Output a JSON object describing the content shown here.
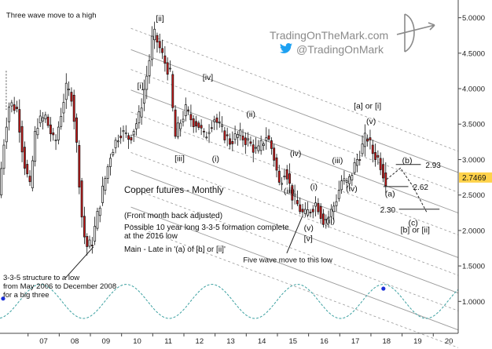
{
  "chart_data": {
    "type": "candlestick",
    "title": "Copper futures - Monthly",
    "subtitle": "(Front month back adjusted)",
    "notes": [
      "Possible 10 year long 3-3-5 formation complete",
      "at the 2016 low",
      "Main - Late in '(a) of [b] or [ii]'"
    ],
    "x_ticks": [
      "07",
      "08",
      "09",
      "10",
      "11",
      "12",
      "13",
      "14",
      "15",
      "16",
      "17",
      "18",
      "19",
      "20"
    ],
    "y_ticks": [
      "5.0000",
      "4.5000",
      "4.0000",
      "3.5000",
      "3.0000",
      "2.5000",
      "2.0000",
      "1.5000",
      "1.0000"
    ],
    "y_tick_values": [
      5.0,
      4.5,
      4.0,
      3.5,
      3.0,
      2.5,
      2.0,
      1.5,
      1.0
    ],
    "ylim": [
      0.55,
      5.25
    ],
    "xlim": [
      2006.1,
      2020.8
    ],
    "last_price": "2.7469",
    "last_price_value": 2.7469,
    "path_anchors": {
      "x": [
        2006.1,
        2006.3,
        2006.45,
        2006.7,
        2006.9,
        2007.1,
        2007.3,
        2007.6,
        2007.9,
        2008.25,
        2008.45,
        2008.6,
        2008.8,
        2008.95,
        2009.1,
        2009.4,
        2009.7,
        2010.0,
        2010.3,
        2010.6,
        2010.9,
        2011.05,
        2011.2,
        2011.4,
        2011.6,
        2011.75,
        2011.9,
        2012.1,
        2012.3,
        2012.5,
        2012.7,
        2013.0,
        2013.2,
        2013.5,
        2013.8,
        2014.1,
        2014.4,
        2014.7,
        2014.9,
        2015.1,
        2015.3,
        2015.5,
        2015.7,
        2015.9,
        2016.1,
        2016.3,
        2016.5,
        2016.7,
        2016.9,
        2017.1,
        2017.3,
        2017.5,
        2017.7,
        2017.9,
        2018.1,
        2018.3,
        2018.5
      ],
      "y": [
        2.5,
        3.4,
        3.8,
        3.7,
        3.0,
        2.6,
        3.5,
        3.6,
        3.2,
        4.0,
        3.9,
        3.2,
        2.0,
        1.75,
        1.85,
        2.5,
        3.1,
        3.4,
        3.3,
        3.6,
        4.3,
        4.8,
        4.65,
        4.4,
        4.2,
        3.3,
        3.5,
        3.7,
        3.55,
        3.5,
        3.3,
        3.6,
        3.45,
        3.25,
        3.35,
        3.25,
        3.1,
        3.35,
        3.1,
        2.65,
        2.9,
        2.5,
        2.35,
        2.2,
        2.3,
        2.4,
        2.15,
        2.2,
        2.4,
        2.7,
        2.65,
        2.9,
        3.1,
        3.35,
        3.1,
        3.0,
        2.72
      ]
    },
    "annotations": [
      {
        "text": "Three wave move to a high",
        "x": 2006.3,
        "y": 5.0
      },
      {
        "text": "[ii]",
        "x": 2011.1,
        "y": 4.95
      },
      {
        "text": "[i]",
        "x": 2010.5,
        "y": 4.0
      },
      {
        "text": "[iv]",
        "x": 2012.6,
        "y": 4.12
      },
      {
        "text": "[iii]",
        "x": 2011.7,
        "y": 2.98
      },
      {
        "text": "(i)",
        "x": 2012.9,
        "y": 2.97
      },
      {
        "text": "(ii)",
        "x": 2014.0,
        "y": 3.6
      },
      {
        "text": "(iii)",
        "x": 2015.2,
        "y": 2.52
      },
      {
        "text": "(iv)",
        "x": 2015.4,
        "y": 3.05
      },
      {
        "text": "(i)",
        "x": 2016.05,
        "y": 2.58
      },
      {
        "text": "(ii)",
        "x": 2016.55,
        "y": 2.1
      },
      {
        "text": "(v)",
        "x": 2015.85,
        "y": 2.0
      },
      {
        "text": "[v]",
        "x": 2015.85,
        "y": 1.85
      },
      {
        "text": "(iii)",
        "x": 2016.75,
        "y": 2.95
      },
      {
        "text": "(iv)",
        "x": 2017.2,
        "y": 2.55
      },
      {
        "text": "[a] or [i]",
        "x": 2017.45,
        "y": 3.72
      },
      {
        "text": "(v)",
        "x": 2017.85,
        "y": 3.5
      },
      {
        "text": "(b)",
        "x": 2019.0,
        "y": 2.95
      },
      {
        "text": "(a)",
        "x": 2018.45,
        "y": 2.48
      },
      {
        "text": "(c)",
        "x": 2019.2,
        "y": 2.07
      },
      {
        "text": "[b] or [ii]",
        "x": 2018.95,
        "y": 1.97
      },
      {
        "text": "Five wave move to this low",
        "x": 2013.9,
        "y": 1.55
      },
      {
        "text": "3-3-5 structure to a low",
        "x": 2006.2,
        "y": 1.3
      },
      {
        "text": "from May 2006 to December 2008",
        "x": 2006.2,
        "y": 1.18
      },
      {
        "text": "for a big three",
        "x": 2006.2,
        "y": 1.06
      }
    ],
    "levels": [
      {
        "label": "2.93",
        "value": 2.93
      },
      {
        "label": "2.62",
        "value": 2.62
      },
      {
        "label": "2.30",
        "value": 2.3
      }
    ],
    "cycle": {
      "period_years": 2.75,
      "center": 1.0,
      "amplitude": 0.24
    },
    "cycle_markers": [
      {
        "x": 2006.2,
        "y": 1.04
      },
      {
        "x": 2018.4,
        "y": 1.18
      }
    ]
  },
  "watermark": {
    "site": "TradingOnTheMark.com",
    "handle": "@TradingOnMark",
    "colors": {
      "text": "#8a8a8a",
      "twitter": "#1da1f2"
    }
  },
  "colors": {
    "up": "#ffffff",
    "down": "#cc1a1a",
    "channel_dark": "#9a9a9a",
    "channel_dashed": "#9a9a9a",
    "cycle": "#3aa0a0",
    "marker": "#1a2fd8",
    "level": "#222222",
    "price_tag": "#ffd24a"
  },
  "icons": {
    "twitter": "twitter-bird-icon",
    "logo": "bow-and-arrow-icon"
  }
}
